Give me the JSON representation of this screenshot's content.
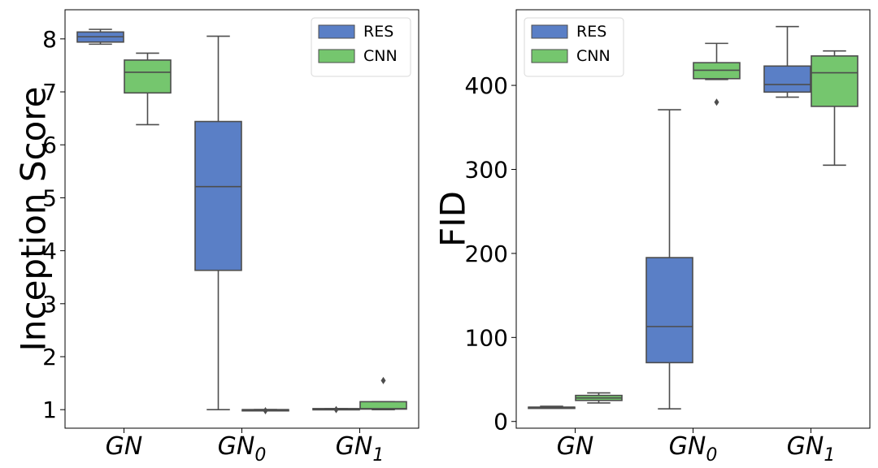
{
  "chart_data": [
    {
      "type": "box",
      "ylabel": "Inception Score",
      "xlabel": "",
      "ylim": [
        0.65,
        8.55
      ],
      "yticks": [
        1,
        2,
        3,
        4,
        5,
        6,
        7,
        8
      ],
      "grid": false,
      "legend_position": "top-right",
      "categories": [
        {
          "base": "GN",
          "sub": ""
        },
        {
          "base": "GN",
          "sub": "0"
        },
        {
          "base": "GN",
          "sub": "1"
        }
      ],
      "series": [
        {
          "name": "RES",
          "color": "#5a7fc6",
          "boxes": [
            {
              "whislo": 7.9,
              "q1": 7.94,
              "med": 8.04,
              "q3": 8.13,
              "whishi": 8.18,
              "fliers": []
            },
            {
              "whislo": 1.0,
              "q1": 3.63,
              "med": 5.21,
              "q3": 6.44,
              "whishi": 8.05,
              "fliers": []
            },
            {
              "whislo": 1.0,
              "q1": 1.0,
              "med": 1.01,
              "q3": 1.02,
              "whishi": 1.02,
              "fliers": [
                1.0
              ]
            }
          ]
        },
        {
          "name": "CNN",
          "color": "#75c66e",
          "boxes": [
            {
              "whislo": 6.38,
              "q1": 6.98,
              "med": 7.37,
              "q3": 7.6,
              "whishi": 7.73,
              "fliers": []
            },
            {
              "whislo": 1.0,
              "q1": 1.0,
              "med": 1.0,
              "q3": 1.0,
              "whishi": 1.0,
              "fliers": [
                0.98
              ]
            },
            {
              "whislo": 1.0,
              "q1": 1.01,
              "med": 1.02,
              "q3": 1.15,
              "whishi": 1.15,
              "fliers": [
                1.55
              ]
            }
          ]
        }
      ]
    },
    {
      "type": "box",
      "ylabel": "FID",
      "xlabel": "",
      "ylim": [
        -8,
        490
      ],
      "yticks": [
        0,
        100,
        200,
        300,
        400
      ],
      "grid": false,
      "legend_position": "top-left",
      "categories": [
        {
          "base": "GN",
          "sub": ""
        },
        {
          "base": "GN",
          "sub": "0"
        },
        {
          "base": "GN",
          "sub": "1"
        }
      ],
      "series": [
        {
          "name": "RES",
          "color": "#5a7fc6",
          "boxes": [
            {
              "whislo": 16,
              "q1": 16,
              "med": 17,
              "q3": 17,
              "whishi": 18,
              "fliers": []
            },
            {
              "whislo": 15,
              "q1": 70,
              "med": 113,
              "q3": 195,
              "whishi": 371,
              "fliers": []
            },
            {
              "whislo": 386,
              "q1": 392,
              "med": 401,
              "q3": 423,
              "whishi": 470,
              "fliers": []
            }
          ]
        },
        {
          "name": "CNN",
          "color": "#75c66e",
          "boxes": [
            {
              "whislo": 22,
              "q1": 25,
              "med": 28,
              "q3": 31,
              "whishi": 34,
              "fliers": []
            },
            {
              "whislo": 407,
              "q1": 408,
              "med": 418,
              "q3": 427,
              "whishi": 450,
              "fliers": [
                380
              ]
            },
            {
              "whislo": 305,
              "q1": 375,
              "med": 415,
              "q3": 435,
              "whishi": 441,
              "fliers": []
            }
          ]
        }
      ]
    }
  ]
}
